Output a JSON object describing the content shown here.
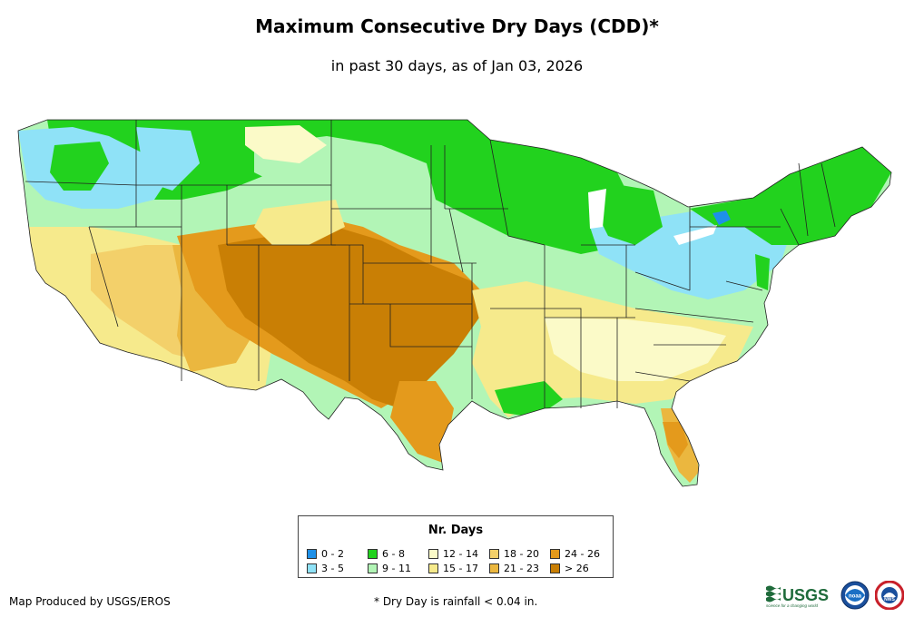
{
  "title": "Maximum Consecutive Dry Days (CDD)*",
  "subtitle": "in past 30 days, as of Jan 03, 2026",
  "legend": {
    "title": "Nr. Days",
    "items": [
      {
        "label": "0 - 2",
        "color": "#1e90e8"
      },
      {
        "label": "3 - 5",
        "color": "#8fe2f7"
      },
      {
        "label": "6 - 8",
        "color": "#22d21e"
      },
      {
        "label": "9 - 11",
        "color": "#b2f5b6"
      },
      {
        "label": "12 - 14",
        "color": "#fbfac8"
      },
      {
        "label": "15 - 17",
        "color": "#f6ea8c"
      },
      {
        "label": "18 - 20",
        "color": "#f3d06a"
      },
      {
        "label": "21 - 23",
        "color": "#ebb73f"
      },
      {
        "label": "24 - 26",
        "color": "#e49a1c"
      },
      {
        "label": "> 26",
        "color": "#c97f05"
      }
    ]
  },
  "footer": {
    "credit": "Map Produced by USGS/EROS",
    "note": "* Dry Day is rainfall < 0.04 in."
  },
  "logos": {
    "usgs": "USGS",
    "usgs_tagline": "science for a changing world",
    "noaa": "noaa",
    "nws": "NWS"
  },
  "icons": [
    "usgs-logo",
    "noaa-seal-icon",
    "nws-seal-icon"
  ]
}
